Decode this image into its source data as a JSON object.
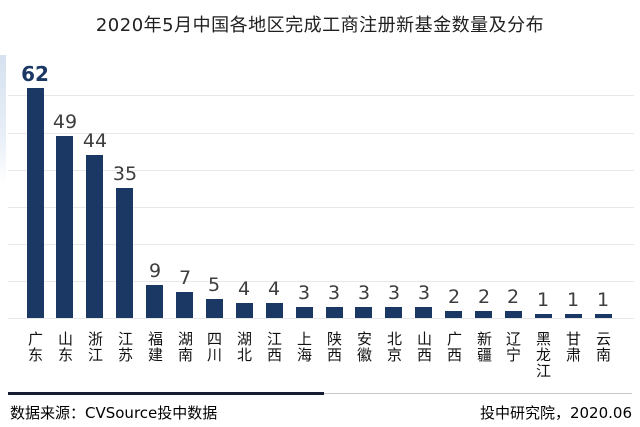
{
  "page": {
    "title": "2020年5月中国各地区完成工商注册新基金数量及分布"
  },
  "chart_data": {
    "type": "bar",
    "title": "2020年5月中国各地区完成工商注册新基金数量及分布",
    "categories": [
      "广东",
      "山东",
      "浙江",
      "江苏",
      "福建",
      "湖南",
      "四川",
      "湖北",
      "江西",
      "上海",
      "陕西",
      "安徽",
      "北京",
      "山西",
      "广西",
      "新疆",
      "辽宁",
      "黑龙江",
      "甘肃",
      "云南"
    ],
    "values": [
      62,
      49,
      44,
      35,
      9,
      7,
      5,
      4,
      4,
      3,
      3,
      3,
      3,
      3,
      2,
      2,
      2,
      1,
      1,
      1
    ],
    "xlabel": "",
    "ylabel": "",
    "ylim": [
      0,
      62
    ],
    "gridline_values": [
      0,
      10,
      20,
      30,
      40,
      50,
      60
    ],
    "grid": true,
    "legend": false,
    "highlighted_category": "广东",
    "bar_color": "#1B3764",
    "value_label_color": "#3D3D3D",
    "highlight_label_color": "#1B3764",
    "gridline_color": "#E8E8E8"
  },
  "footer": {
    "source": "数据来源：CVSource投中数据",
    "publisher": "投中研究院，2020.06",
    "divider_accent_color": "#171C33"
  }
}
